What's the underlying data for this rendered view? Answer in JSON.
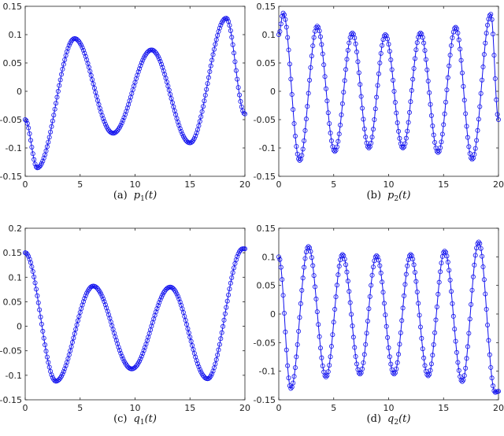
{
  "chart_data": [
    {
      "id": "a",
      "type": "line",
      "caption_tag": "(a)",
      "caption_var": "p",
      "caption_sub": "1",
      "caption_arg": "(t)",
      "xlim": [
        0,
        20
      ],
      "ylim": [
        -0.15,
        0.15
      ],
      "xticks": [
        0,
        5,
        10,
        15,
        20
      ],
      "yticks": [
        -0.15,
        -0.1,
        -0.05,
        0,
        0.05,
        0.1,
        0.15
      ],
      "xtick_labels": [
        "0",
        "5",
        "10",
        "15",
        "20"
      ],
      "ytick_labels": [
        "-0.15",
        "-0.1",
        "-0.05",
        "0",
        "0.05",
        "0.1",
        "0.15"
      ],
      "marker": "circle",
      "color": "#1111ee",
      "keypoints": [
        [
          0,
          -0.05
        ],
        [
          1.1,
          -0.135
        ],
        [
          4.5,
          0.093
        ],
        [
          8.0,
          -0.074
        ],
        [
          11.5,
          0.073
        ],
        [
          15.0,
          -0.091
        ],
        [
          18.3,
          0.129
        ],
        [
          20,
          -0.04
        ]
      ]
    },
    {
      "id": "b",
      "type": "line",
      "caption_tag": "(b)",
      "caption_var": "p",
      "caption_sub": "2",
      "caption_arg": "(t)",
      "xlim": [
        0,
        20
      ],
      "ylim": [
        -0.15,
        0.15
      ],
      "xticks": [
        0,
        5,
        10,
        15,
        20
      ],
      "yticks": [
        -0.15,
        -0.1,
        -0.05,
        0,
        0.05,
        0.1,
        0.15
      ],
      "xtick_labels": [
        "0",
        "5",
        "10",
        "15",
        "20"
      ],
      "ytick_labels": [
        "-0.15",
        "-0.1",
        "-0.05",
        "0",
        "0.05",
        "0.1",
        "0.15"
      ],
      "marker": "circle",
      "color": "#1111ee",
      "keypoints": [
        [
          0,
          0.1
        ],
        [
          0.4,
          0.138
        ],
        [
          1.9,
          -0.122
        ],
        [
          3.5,
          0.115
        ],
        [
          5.1,
          -0.106
        ],
        [
          6.7,
          0.103
        ],
        [
          8.2,
          -0.1
        ],
        [
          9.7,
          0.1
        ],
        [
          11.3,
          -0.1
        ],
        [
          12.9,
          0.103
        ],
        [
          14.5,
          -0.108
        ],
        [
          16.1,
          0.113
        ],
        [
          17.6,
          -0.12
        ],
        [
          19.3,
          0.136
        ],
        [
          20,
          -0.05
        ]
      ]
    },
    {
      "id": "c",
      "type": "line",
      "caption_tag": "(c)",
      "caption_var": "q",
      "caption_sub": "1",
      "caption_arg": "(t)",
      "xlim": [
        0,
        20
      ],
      "ylim": [
        -0.15,
        0.2
      ],
      "xticks": [
        0,
        5,
        10,
        15,
        20
      ],
      "yticks": [
        -0.15,
        -0.1,
        -0.05,
        0,
        0.05,
        0.1,
        0.15,
        0.2
      ],
      "xtick_labels": [
        "0",
        "5",
        "10",
        "15",
        "20"
      ],
      "ytick_labels": [
        "-0.15",
        "-0.1",
        "-0.05",
        "0",
        "0.05",
        "0.1",
        "0.15",
        "0.2"
      ],
      "marker": "circle",
      "color": "#1111ee",
      "keypoints": [
        [
          0,
          0.15
        ],
        [
          2.8,
          -0.112
        ],
        [
          6.2,
          0.082
        ],
        [
          9.7,
          -0.087
        ],
        [
          13.2,
          0.08
        ],
        [
          16.6,
          -0.107
        ],
        [
          19.8,
          0.158
        ],
        [
          20,
          0.158
        ]
      ]
    },
    {
      "id": "d",
      "type": "line",
      "caption_tag": "(d)",
      "caption_var": "q",
      "caption_sub": "2",
      "caption_arg": "(t)",
      "xlim": [
        0,
        20
      ],
      "ylim": [
        -0.15,
        0.15
      ],
      "xticks": [
        0,
        5,
        10,
        15,
        20
      ],
      "yticks": [
        -0.15,
        -0.1,
        -0.05,
        0,
        0.05,
        0.1,
        0.15
      ],
      "xtick_labels": [
        "0",
        "5",
        "10",
        "15",
        "20"
      ],
      "ytick_labels": [
        "-0.15",
        "-0.1",
        "-0.05",
        "0",
        "0.05",
        "0.1",
        "0.15"
      ],
      "marker": "circle",
      "color": "#1111ee",
      "keypoints": [
        [
          0,
          0.1
        ],
        [
          1.1,
          -0.13
        ],
        [
          2.7,
          0.118
        ],
        [
          4.3,
          -0.11
        ],
        [
          5.8,
          0.104
        ],
        [
          7.4,
          -0.105
        ],
        [
          8.9,
          0.102
        ],
        [
          10.5,
          -0.105
        ],
        [
          12.0,
          0.104
        ],
        [
          13.6,
          -0.108
        ],
        [
          15.1,
          0.11
        ],
        [
          16.7,
          -0.118
        ],
        [
          18.2,
          0.126
        ],
        [
          19.7,
          -0.137
        ],
        [
          20,
          -0.135
        ]
      ]
    }
  ]
}
